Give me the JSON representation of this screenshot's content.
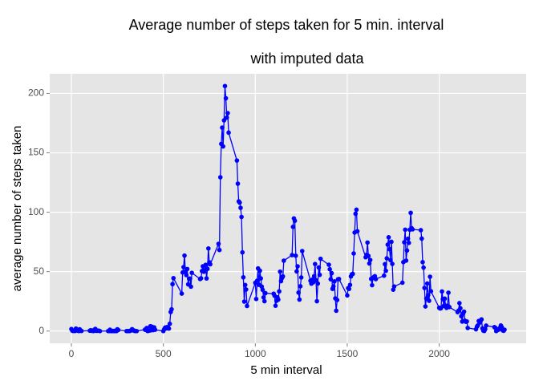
{
  "chart_data": {
    "type": "line",
    "title": "Average number of steps taken for 5 min. interval",
    "subtitle": "with imputed data",
    "x_label": "5 min interval",
    "y_label": "average number of steps taken",
    "xlim": [
      -117.75,
      2472.75
    ],
    "ylim": [
      -10.3,
      216.5
    ],
    "xticks": [
      0,
      500,
      1000,
      1500,
      2000
    ],
    "yticks": [
      0,
      50,
      100,
      150,
      200
    ],
    "grid": true,
    "series": [
      {
        "color": "#0000ff",
        "markers": true,
        "x": [
          0,
          5,
          10,
          15,
          20,
          25,
          30,
          35,
          40,
          45,
          50,
          55,
          100,
          105,
          110,
          115,
          120,
          125,
          130,
          135,
          140,
          145,
          150,
          155,
          200,
          205,
          210,
          215,
          220,
          225,
          230,
          235,
          240,
          245,
          250,
          255,
          300,
          305,
          310,
          315,
          320,
          325,
          330,
          335,
          340,
          345,
          350,
          355,
          400,
          405,
          410,
          415,
          420,
          425,
          430,
          435,
          440,
          445,
          450,
          455,
          500,
          505,
          510,
          515,
          520,
          525,
          530,
          535,
          540,
          545,
          550,
          555,
          600,
          605,
          610,
          615,
          620,
          625,
          630,
          635,
          640,
          645,
          650,
          655,
          700,
          705,
          710,
          715,
          720,
          725,
          730,
          735,
          740,
          745,
          750,
          755,
          800,
          805,
          810,
          815,
          820,
          825,
          830,
          835,
          840,
          845,
          850,
          855,
          900,
          905,
          910,
          915,
          920,
          925,
          930,
          935,
          940,
          945,
          950,
          955,
          1000,
          1005,
          1010,
          1015,
          1020,
          1025,
          1030,
          1035,
          1040,
          1045,
          1050,
          1055,
          1100,
          1105,
          1110,
          1115,
          1120,
          1125,
          1130,
          1135,
          1140,
          1145,
          1150,
          1155,
          1200,
          1205,
          1210,
          1215,
          1220,
          1225,
          1230,
          1235,
          1240,
          1245,
          1250,
          1255,
          1300,
          1305,
          1310,
          1315,
          1320,
          1325,
          1330,
          1335,
          1340,
          1345,
          1350,
          1355,
          1400,
          1405,
          1410,
          1415,
          1420,
          1425,
          1430,
          1435,
          1440,
          1445,
          1450,
          1455,
          1500,
          1505,
          1510,
          1515,
          1520,
          1525,
          1530,
          1535,
          1540,
          1545,
          1550,
          1555,
          1600,
          1605,
          1610,
          1615,
          1620,
          1625,
          1630,
          1635,
          1640,
          1645,
          1650,
          1655,
          1700,
          1705,
          1710,
          1715,
          1720,
          1725,
          1730,
          1735,
          1740,
          1745,
          1750,
          1755,
          1800,
          1805,
          1810,
          1815,
          1820,
          1825,
          1830,
          1835,
          1840,
          1845,
          1850,
          1855,
          1900,
          1905,
          1910,
          1915,
          1920,
          1925,
          1930,
          1935,
          1940,
          1945,
          1950,
          1955,
          2000,
          2005,
          2010,
          2015,
          2020,
          2025,
          2030,
          2035,
          2040,
          2045,
          2050,
          2055,
          2100,
          2105,
          2110,
          2115,
          2120,
          2125,
          2130,
          2135,
          2140,
          2145,
          2150,
          2155,
          2200,
          2205,
          2210,
          2215,
          2220,
          2225,
          2230,
          2235,
          2240,
          2245,
          2250,
          2255,
          2300,
          2305,
          2310,
          2315,
          2320,
          2325,
          2330,
          2335,
          2340,
          2345,
          2350,
          2355
        ],
        "values": [
          1.7,
          0.3,
          0.1,
          0.2,
          0.1,
          2.1,
          0.5,
          0.9,
          0,
          1.5,
          0.3,
          0.1,
          0.3,
          0.7,
          0.2,
          0.3,
          0,
          1.1,
          1.8,
          0.2,
          0.2,
          0.4,
          0.3,
          0,
          0,
          0,
          1.1,
          0,
          0,
          0.1,
          0,
          0.2,
          0,
          0,
          1.5,
          0.9,
          0,
          0,
          0,
          0,
          0.2,
          0.6,
          1.6,
          0.6,
          0.5,
          0.1,
          0,
          0,
          1.2,
          0.9,
          2.6,
          0,
          0.3,
          0.4,
          4.1,
          0.7,
          3.5,
          0.8,
          3.1,
          1.1,
          0,
          1.6,
          3,
          2.2,
          3.3,
          3,
          2.1,
          6.1,
          16,
          18.3,
          39.5,
          44.5,
          31.5,
          49.3,
          53.8,
          63.5,
          50,
          47.1,
          52.2,
          39.3,
          44,
          44.2,
          37.4,
          49,
          43.8,
          44.4,
          50.5,
          54.5,
          49.9,
          51,
          55.7,
          44.3,
          52.3,
          69.5,
          57.8,
          56.2,
          73.4,
          68.2,
          129.4,
          157.5,
          171.2,
          155.4,
          177.3,
          206.2,
          195.9,
          179.6,
          183.4,
          167,
          143.5,
          124,
          109.1,
          108.1,
          103.7,
          96,
          66.2,
          45.2,
          24.8,
          38.8,
          35,
          21.1,
          40.6,
          27,
          42.4,
          52.7,
          38.9,
          50.8,
          44.3,
          37.4,
          34.7,
          28.3,
          25.1,
          31.9,
          31.4,
          29.7,
          21.3,
          25.5,
          28.4,
          26.5,
          33.4,
          50,
          42,
          44.6,
          46,
          59.2,
          63.9,
          87.7,
          94.8,
          92.8,
          63.4,
          50.2,
          54.5,
          32.4,
          26.5,
          37.7,
          45.1,
          67.3,
          42.3,
          39.9,
          43.3,
          41,
          46.2,
          56.4,
          42.8,
          25.1,
          40,
          53.5,
          47.3,
          60.8,
          55.8,
          52,
          43.6,
          48.7,
          35.5,
          37.5,
          41.8,
          27.5,
          17.1,
          26.1,
          43.6,
          43.8,
          30,
          36.1,
          35.5,
          38.8,
          46,
          47.8,
          48.1,
          65.3,
          82.9,
          98.7,
          102.1,
          84,
          62.1,
          64.1,
          74.5,
          63.2,
          56.9,
          59.8,
          43.9,
          38.6,
          44.7,
          45.5,
          46.2,
          43.7,
          46.6,
          56.3,
          50.7,
          61.2,
          72.7,
          78.9,
          68.9,
          59.7,
          75.1,
          56.5,
          34.8,
          37.5,
          40.7,
          58,
          74.7,
          85.3,
          59.3,
          67.8,
          77.7,
          74.2,
          85.3,
          99.5,
          86.6,
          85.6,
          84.9,
          77.8,
          58,
          53.4,
          36.3,
          20.7,
          27.4,
          40,
          30.2,
          25.5,
          45.7,
          33.5,
          19.6,
          19,
          19.3,
          33.3,
          26.8,
          21.2,
          27.3,
          21.3,
          19.5,
          21.3,
          32.3,
          20.2,
          15.9,
          17.2,
          23.5,
          19.2,
          12.5,
          8,
          14.7,
          16.3,
          8.7,
          7.8,
          8.1,
          2.6,
          1.5,
          3.7,
          4.8,
          8.5,
          7.1,
          8.7,
          9.8,
          2.2,
          0.3,
          0.1,
          1.6,
          4.6,
          3.3,
          2.8,
          0,
          0.8,
          1,
          1.6,
          2.6,
          4.7,
          3.3,
          0.6,
          0.2,
          1.1
        ]
      }
    ]
  }
}
